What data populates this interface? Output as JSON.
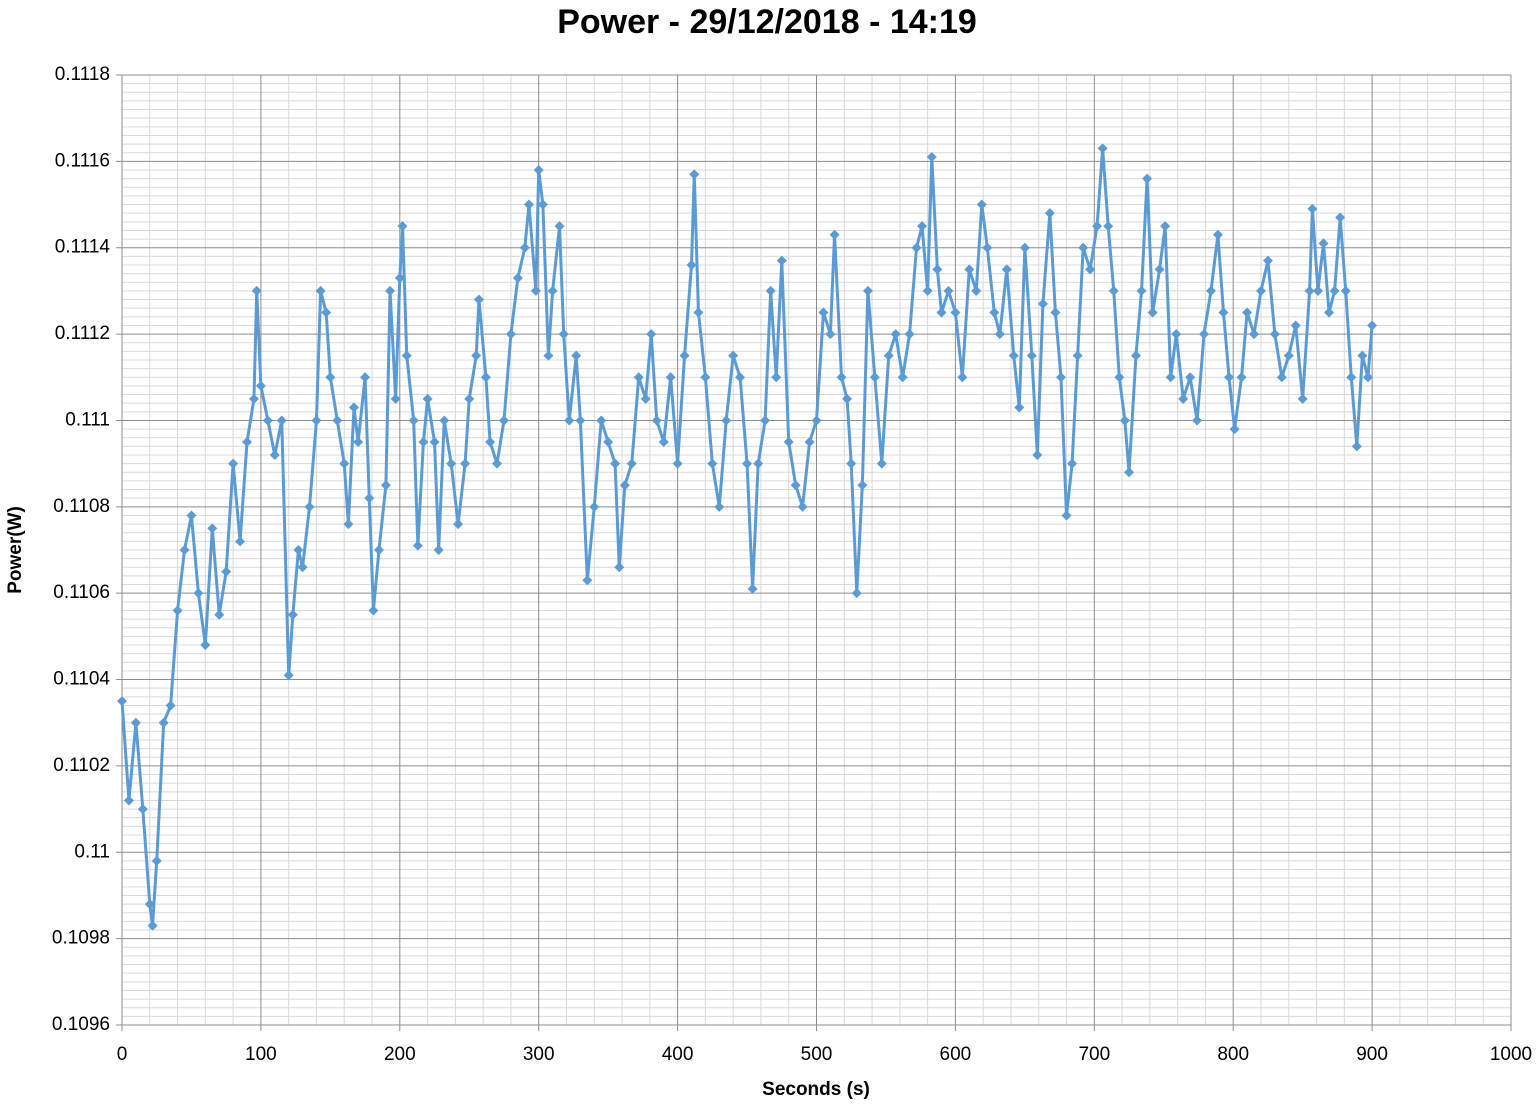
{
  "chart_data": {
    "type": "line",
    "title": "Power - 29/12/2018 - 14:19",
    "x_label": "Seconds (s)",
    "y_label": "Power(W)",
    "x": [
      0,
      5,
      10,
      15,
      20,
      22,
      25,
      30,
      35,
      40,
      45,
      50,
      55,
      60,
      65,
      70,
      75,
      80,
      85,
      90,
      95,
      97,
      100,
      105,
      110,
      115,
      120,
      123,
      127,
      130,
      135,
      140,
      143,
      147,
      150,
      155,
      160,
      163,
      167,
      170,
      175,
      178,
      181,
      185,
      190,
      193,
      197,
      200,
      202,
      205,
      210,
      213,
      217,
      220,
      225,
      228,
      232,
      237,
      242,
      247,
      250,
      255,
      257,
      262,
      265,
      270,
      275,
      280,
      285,
      290,
      293,
      298,
      300,
      303,
      307,
      310,
      315,
      318,
      322,
      327,
      330,
      335,
      340,
      345,
      350,
      355,
      358,
      362,
      367,
      372,
      377,
      381,
      385,
      390,
      395,
      400,
      405,
      410,
      412,
      415,
      420,
      425,
      430,
      435,
      440,
      445,
      450,
      454,
      458,
      463,
      467,
      471,
      475,
      480,
      485,
      490,
      495,
      500,
      505,
      510,
      513,
      518,
      522,
      525,
      529,
      533,
      537,
      542,
      547,
      552,
      557,
      562,
      567,
      572,
      576,
      580,
      583,
      587,
      590,
      595,
      600,
      605,
      610,
      615,
      619,
      623,
      628,
      632,
      637,
      642,
      646,
      650,
      655,
      659,
      663,
      668,
      672,
      676,
      680,
      684,
      688,
      692,
      697,
      702,
      706,
      710,
      714,
      718,
      722,
      725,
      730,
      734,
      738,
      742,
      747,
      751,
      755,
      759,
      764,
      769,
      774,
      779,
      784,
      789,
      793,
      797,
      801,
      806,
      810,
      815,
      820,
      825,
      830,
      835,
      840,
      845,
      850,
      855,
      857,
      861,
      865,
      869,
      873,
      877,
      881,
      885,
      889,
      893,
      897,
      900
    ],
    "series": [
      {
        "color": "#5b9bd5",
        "values": [
          0.11035,
          0.11012,
          0.1103,
          0.1101,
          0.10988,
          0.10983,
          0.10998,
          0.1103,
          0.11034,
          0.11056,
          0.1107,
          0.11078,
          0.1106,
          0.11048,
          0.11075,
          0.11055,
          0.11065,
          0.1109,
          0.11072,
          0.11095,
          0.11105,
          0.1113,
          0.11108,
          0.111,
          0.11092,
          0.111,
          0.11041,
          0.11055,
          0.1107,
          0.11066,
          0.1108,
          0.111,
          0.1113,
          0.11125,
          0.1111,
          0.111,
          0.1109,
          0.11076,
          0.11103,
          0.11095,
          0.1111,
          0.11082,
          0.11056,
          0.1107,
          0.11085,
          0.1113,
          0.11105,
          0.11133,
          0.11145,
          0.11115,
          0.111,
          0.11071,
          0.11095,
          0.11105,
          0.11095,
          0.1107,
          0.111,
          0.1109,
          0.11076,
          0.1109,
          0.11105,
          0.11115,
          0.11128,
          0.1111,
          0.11095,
          0.1109,
          0.111,
          0.1112,
          0.11133,
          0.1114,
          0.1115,
          0.1113,
          0.11158,
          0.1115,
          0.11115,
          0.1113,
          0.11145,
          0.1112,
          0.111,
          0.11115,
          0.111,
          0.11063,
          0.1108,
          0.111,
          0.11095,
          0.1109,
          0.11066,
          0.11085,
          0.1109,
          0.1111,
          0.11105,
          0.1112,
          0.111,
          0.11095,
          0.1111,
          0.1109,
          0.11115,
          0.11136,
          0.11157,
          0.11125,
          0.1111,
          0.1109,
          0.1108,
          0.111,
          0.11115,
          0.1111,
          0.1109,
          0.11061,
          0.1109,
          0.111,
          0.1113,
          0.1111,
          0.11137,
          0.11095,
          0.11085,
          0.1108,
          0.11095,
          0.111,
          0.11125,
          0.1112,
          0.11143,
          0.1111,
          0.11105,
          0.1109,
          0.1106,
          0.11085,
          0.1113,
          0.1111,
          0.1109,
          0.11115,
          0.1112,
          0.1111,
          0.1112,
          0.1114,
          0.11145,
          0.1113,
          0.11161,
          0.11135,
          0.11125,
          0.1113,
          0.11125,
          0.1111,
          0.11135,
          0.1113,
          0.1115,
          0.1114,
          0.11125,
          0.1112,
          0.11135,
          0.11115,
          0.11103,
          0.1114,
          0.11115,
          0.11092,
          0.11127,
          0.11148,
          0.11125,
          0.1111,
          0.11078,
          0.1109,
          0.11115,
          0.1114,
          0.11135,
          0.11145,
          0.11163,
          0.11145,
          0.1113,
          0.1111,
          0.111,
          0.11088,
          0.11115,
          0.1113,
          0.11156,
          0.11125,
          0.11135,
          0.11145,
          0.1111,
          0.1112,
          0.11105,
          0.1111,
          0.111,
          0.1112,
          0.1113,
          0.11143,
          0.11125,
          0.1111,
          0.11098,
          0.1111,
          0.11125,
          0.1112,
          0.1113,
          0.11137,
          0.1112,
          0.1111,
          0.11115,
          0.11122,
          0.11105,
          0.1113,
          0.11149,
          0.1113,
          0.11141,
          0.11125,
          0.1113,
          0.11147,
          0.1113,
          0.1111,
          0.11094,
          0.11115,
          0.1111,
          0.11122
        ]
      }
    ],
    "xlim": [
      0,
      1000
    ],
    "xticks": [
      0,
      100,
      200,
      300,
      400,
      500,
      600,
      700,
      800,
      900,
      1000
    ],
    "ylim": [
      0.1096,
      0.1118
    ],
    "yticks": [
      0.1096,
      0.1098,
      0.11,
      0.1102,
      0.1104,
      0.1106,
      0.1108,
      0.111,
      0.1112,
      0.1114,
      0.1116,
      0.1118
    ],
    "grid": true,
    "minor_grid": true
  }
}
